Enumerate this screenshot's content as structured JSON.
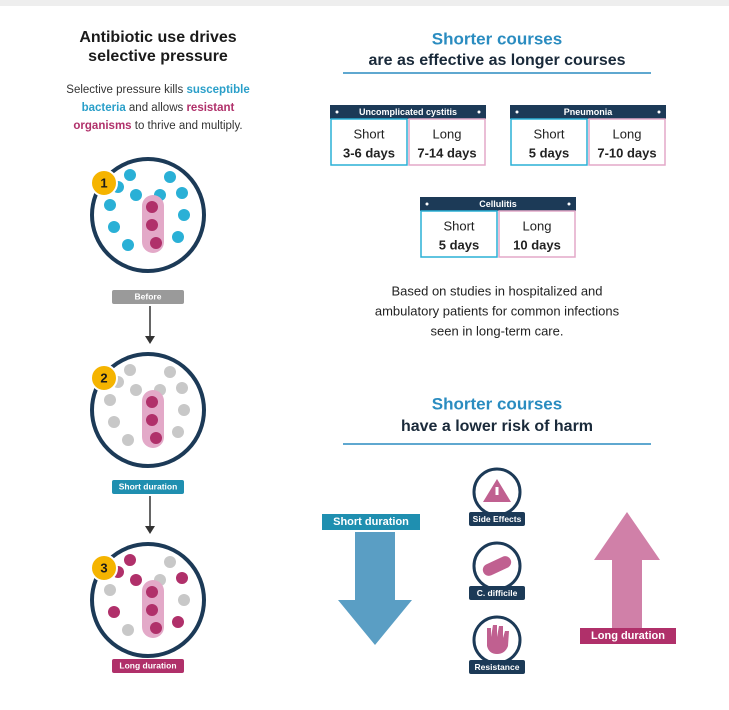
{
  "left": {
    "title": [
      "Antibiotic use drives",
      "selective pressure"
    ],
    "description": [
      [
        {
          "text": "Selective pressure kills ",
          "color": "#333333"
        },
        {
          "text": "susceptible",
          "color": "#2a9fc9"
        }
      ],
      [
        {
          "text": "bacteria",
          "color": "#2a9fc9"
        },
        {
          "text": " and allows ",
          "color": "#333333"
        },
        {
          "text": "resistant",
          "color": "#b0306a"
        }
      ],
      [
        {
          "text": "organisms",
          "color": "#b0306a"
        },
        {
          "text": " to thrive and multiply.",
          "color": "#333333"
        }
      ]
    ],
    "steps": [
      {
        "number": "1",
        "label": "Before"
      },
      {
        "number": "2",
        "label": "Short duration"
      },
      {
        "number": "3",
        "label": "Long duration"
      }
    ]
  },
  "effectiveness": {
    "heading": [
      "Shorter courses",
      "are as effective as longer courses"
    ],
    "cards": [
      {
        "title": "Uncomplicated cystitis",
        "short": {
          "label": "Short",
          "duration": "3-6 days"
        },
        "long": {
          "label": "Long",
          "duration": "7-14 days"
        }
      },
      {
        "title": "Pneumonia",
        "short": {
          "label": "Short",
          "duration": "5 days"
        },
        "long": {
          "label": "Long",
          "duration": "7-10 days"
        }
      },
      {
        "title": "Cellulitis",
        "short": {
          "label": "Short",
          "duration": "5 days"
        },
        "long": {
          "label": "Long",
          "duration": "10 days"
        }
      }
    ],
    "note": [
      "Based on studies in hospitalized and",
      "ambulatory patients for common infections",
      "seen in long-term care."
    ]
  },
  "harm": {
    "heading": [
      "Shorter courses",
      "have a lower risk of harm"
    ],
    "short_label": "Short duration",
    "long_label": "Long duration",
    "items": [
      "Side Effects",
      "C. difficile",
      "Resistance"
    ]
  }
}
